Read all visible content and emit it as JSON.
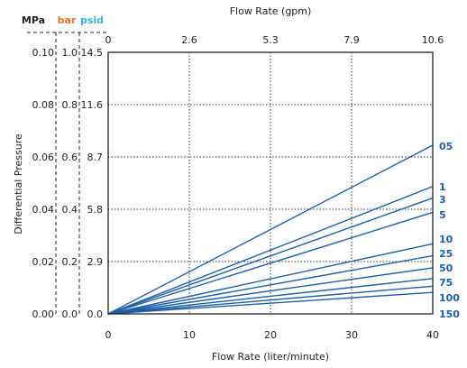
{
  "chart_data": {
    "type": "line",
    "title": "",
    "top_axis": {
      "label": "Flow Rate (gpm)",
      "ticks": [
        "0",
        "2.6",
        "5.3",
        "7.9",
        "10.6"
      ]
    },
    "bottom_axis": {
      "label": "Flow Rate (liter/minute)",
      "ticks": [
        "0",
        "10",
        "20",
        "30",
        "40"
      ]
    },
    "xlim": [
      0,
      40
    ],
    "ylim": [
      0,
      0.1
    ],
    "ylabel": "Differential Pressure",
    "y_units": [
      {
        "name": "MPa",
        "color": "#222222",
        "ticks": [
          "0.00",
          "0.02",
          "0.04",
          "0.06",
          "0.08",
          "0.10"
        ]
      },
      {
        "name": "bar",
        "color": "#e8702a",
        "ticks": [
          "0.0",
          "0.2",
          "0.4",
          "0.6",
          "0.8",
          "1.0"
        ]
      },
      {
        "name": "psid",
        "color": "#3aaed8",
        "ticks": [
          "0.0",
          "2.9",
          "5.8",
          "8.7",
          "11.6",
          "14.5"
        ]
      }
    ],
    "grid": true,
    "series_color": "#1f5fa6",
    "series": [
      {
        "name": "05",
        "x": [
          0,
          40
        ],
        "y": [
          0,
          0.0645
        ]
      },
      {
        "name": "1",
        "x": [
          0,
          40
        ],
        "y": [
          0,
          0.0487
        ]
      },
      {
        "name": "3",
        "x": [
          0,
          40
        ],
        "y": [
          0,
          0.0443
        ]
      },
      {
        "name": "5",
        "x": [
          0,
          40
        ],
        "y": [
          0,
          0.0388
        ]
      },
      {
        "name": "10",
        "x": [
          0,
          40
        ],
        "y": [
          0,
          0.0268
        ]
      },
      {
        "name": "25",
        "x": [
          0,
          40
        ],
        "y": [
          0,
          0.0222
        ]
      },
      {
        "name": "50",
        "x": [
          0,
          40
        ],
        "y": [
          0,
          0.0176
        ]
      },
      {
        "name": "75",
        "x": [
          0,
          40
        ],
        "y": [
          0,
          0.0135
        ]
      },
      {
        "name": "100",
        "x": [
          0,
          40
        ],
        "y": [
          0,
          0.0106
        ]
      },
      {
        "name": "150",
        "x": [
          0,
          40
        ],
        "y": [
          0,
          0.0082
        ]
      }
    ]
  }
}
